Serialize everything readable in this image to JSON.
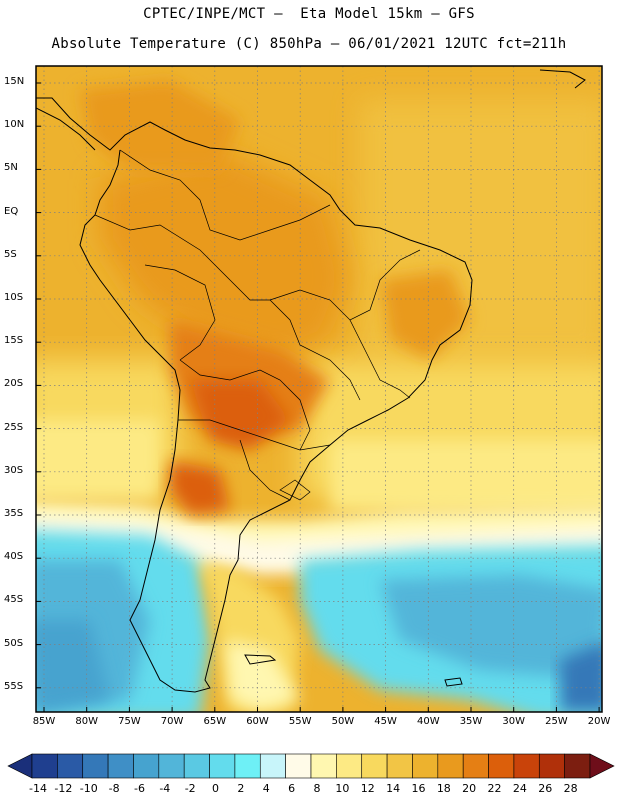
{
  "title": {
    "line1": "CPTEC/INPE/MCT –  Eta Model 15km – GFS",
    "line2": "Absolute Temperature (C) 850hPa – 06/01/2021 12UTC fct=211h"
  },
  "axes": {
    "lat_labels": [
      "15N",
      "10N",
      "5N",
      "EQ",
      "5S",
      "10S",
      "15S",
      "20S",
      "25S",
      "30S",
      "35S",
      "40S",
      "45S",
      "50S",
      "55S"
    ],
    "lon_labels": [
      "85W",
      "80W",
      "75W",
      "70W",
      "65W",
      "60W",
      "55W",
      "50W",
      "45W",
      "40W",
      "35W",
      "30W",
      "25W",
      "20W"
    ]
  },
  "colorbar": {
    "labels": [
      "-14",
      "-12",
      "-10",
      "-8",
      "-6",
      "-4",
      "-2",
      "0",
      "2",
      "4",
      "6",
      "8",
      "10",
      "12",
      "14",
      "16",
      "18",
      "20",
      "22",
      "24",
      "26",
      "28"
    ],
    "colors": [
      "#1f3f8f",
      "#2a5aa6",
      "#3478b8",
      "#3f8fc6",
      "#46a3cf",
      "#52b5d9",
      "#5ac9e3",
      "#63dced",
      "#6ef0f6",
      "#c8f5fa",
      "#fffbe8",
      "#fff7b0",
      "#fdea84",
      "#f8d95e",
      "#f2c545",
      "#edb22e",
      "#e99a1e",
      "#e57f14",
      "#dc5f0b",
      "#c9430a",
      "#b0300a",
      "#7c1e10"
    ],
    "left_end_color": "#1a2f7a",
    "right_end_color": "#6e0e1a"
  }
}
